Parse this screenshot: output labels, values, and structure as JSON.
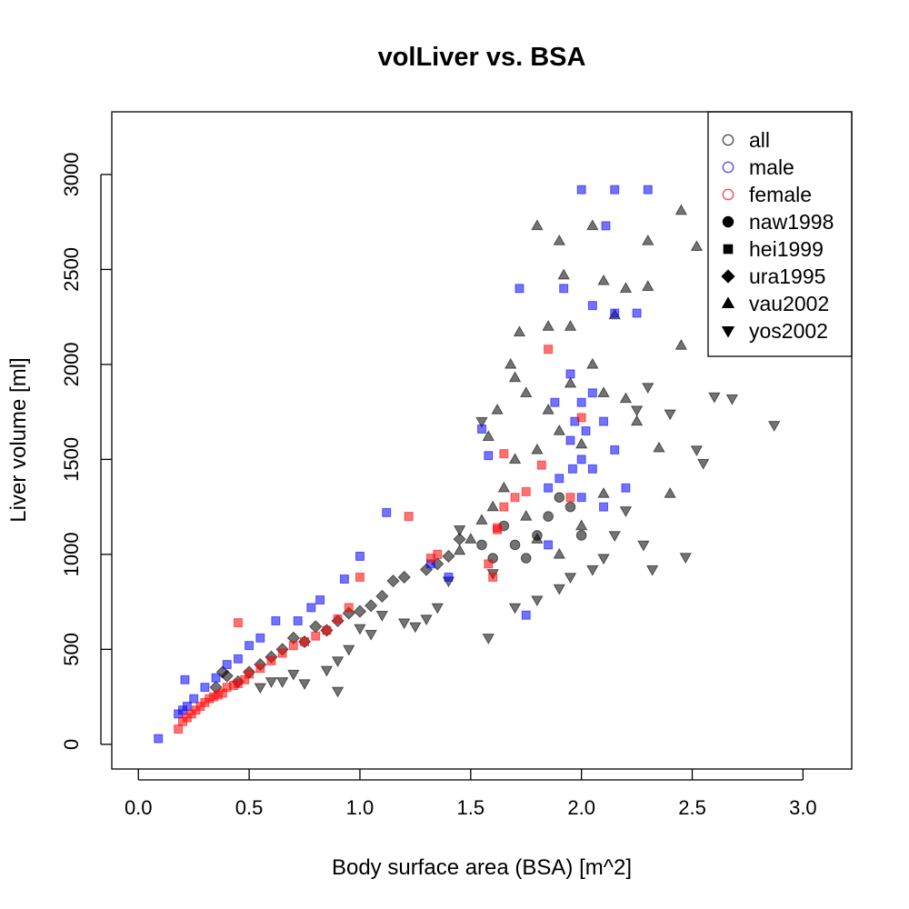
{
  "chart_data": {
    "type": "scatter",
    "title": "volLiver vs. BSA",
    "xlabel": "Body surface area (BSA) [m^2]",
    "ylabel": "Liver volume [ml]",
    "xlim": [
      -0.12,
      3.22
    ],
    "ylim": [
      -130,
      3330
    ],
    "xticks": [
      0.0,
      0.5,
      1.0,
      1.5,
      2.0,
      2.5,
      3.0
    ],
    "xtick_labels": [
      "0.0",
      "0.5",
      "1.0",
      "1.5",
      "2.0",
      "2.5",
      "3.0"
    ],
    "yticks": [
      0,
      500,
      1000,
      1500,
      2000,
      2500,
      3000
    ],
    "ytick_labels": [
      "0",
      "500",
      "1000",
      "1500",
      "2000",
      "2500",
      "3000"
    ],
    "grid": false,
    "legend_position": "top-right",
    "legend": [
      {
        "label": "all",
        "marker": "circle-open",
        "color": "#555555"
      },
      {
        "label": "male",
        "marker": "circle-open",
        "color": "#5555ee"
      },
      {
        "label": "female",
        "marker": "circle-open",
        "color": "#ee5555"
      },
      {
        "label": "naw1998",
        "marker": "circle",
        "color": "#000000"
      },
      {
        "label": "hei1999",
        "marker": "square",
        "color": "#000000"
      },
      {
        "label": "ura1995",
        "marker": "diamond",
        "color": "#000000"
      },
      {
        "label": "vau2002",
        "marker": "triangle-up",
        "color": "#000000"
      },
      {
        "label": "yos2002",
        "marker": "triangle-down",
        "color": "#000000"
      }
    ],
    "colors": {
      "all": "#000000",
      "male": "#0000ff",
      "female": "#ff0000"
    },
    "series": [
      {
        "group": "all",
        "marker": "triangle-down",
        "points": [
          [
            2.87,
            1680
          ],
          [
            2.68,
            1820
          ],
          [
            2.6,
            1830
          ],
          [
            2.55,
            1480
          ],
          [
            2.52,
            1550
          ],
          [
            2.47,
            985
          ],
          [
            2.4,
            1740
          ],
          [
            2.3,
            1880
          ],
          [
            2.25,
            1760
          ],
          [
            2.2,
            1230
          ],
          [
            2.15,
            1100
          ],
          [
            2.1,
            980
          ],
          [
            2.05,
            920
          ],
          [
            1.95,
            880
          ],
          [
            1.9,
            820
          ],
          [
            1.8,
            760
          ],
          [
            1.7,
            720
          ],
          [
            1.6,
            900
          ],
          [
            1.55,
            1700
          ],
          [
            1.45,
            1130
          ],
          [
            1.4,
            860
          ],
          [
            1.35,
            720
          ],
          [
            1.3,
            660
          ],
          [
            1.25,
            620
          ],
          [
            1.2,
            640
          ],
          [
            1.1,
            680
          ],
          [
            1.05,
            580
          ],
          [
            1.0,
            610
          ],
          [
            0.95,
            500
          ],
          [
            0.9,
            440
          ],
          [
            0.85,
            390
          ],
          [
            0.9,
            280
          ],
          [
            0.75,
            320
          ],
          [
            0.7,
            370
          ],
          [
            0.65,
            330
          ],
          [
            0.6,
            330
          ],
          [
            0.55,
            300
          ],
          [
            1.58,
            560
          ],
          [
            2.32,
            920
          ],
          [
            2.28,
            1050
          ]
        ]
      },
      {
        "group": "all",
        "marker": "triangle-up",
        "points": [
          [
            2.45,
            2810
          ],
          [
            2.52,
            2620
          ],
          [
            2.3,
            2650
          ],
          [
            2.3,
            2410
          ],
          [
            2.2,
            2400
          ],
          [
            2.15,
            2260
          ],
          [
            2.05,
            2730
          ],
          [
            2.1,
            2440
          ],
          [
            1.8,
            2730
          ],
          [
            1.9,
            2650
          ],
          [
            1.92,
            2470
          ],
          [
            1.95,
            2200
          ],
          [
            1.85,
            2200
          ],
          [
            1.72,
            2170
          ],
          [
            1.68,
            2000
          ],
          [
            1.7,
            1930
          ],
          [
            1.62,
            1760
          ],
          [
            1.58,
            1620
          ],
          [
            1.75,
            1850
          ],
          [
            1.85,
            1760
          ],
          [
            1.9,
            1650
          ],
          [
            2.0,
            1580
          ],
          [
            2.1,
            1850
          ],
          [
            2.2,
            1820
          ],
          [
            2.25,
            1700
          ],
          [
            2.35,
            1560
          ],
          [
            2.4,
            1320
          ],
          [
            1.65,
            1350
          ],
          [
            1.6,
            1250
          ],
          [
            1.55,
            1180
          ],
          [
            1.5,
            1080
          ],
          [
            1.45,
            1020
          ],
          [
            1.75,
            1200
          ],
          [
            1.8,
            1080
          ],
          [
            1.9,
            1000
          ],
          [
            2.0,
            1150
          ],
          [
            2.1,
            1320
          ],
          [
            1.7,
            1500
          ],
          [
            1.8,
            1550
          ],
          [
            2.45,
            2100
          ],
          [
            1.95,
            1900
          ],
          [
            2.05,
            2000
          ]
        ]
      },
      {
        "group": "all",
        "marker": "diamond",
        "points": [
          [
            1.45,
            1080
          ],
          [
            1.4,
            990
          ],
          [
            1.35,
            950
          ],
          [
            1.3,
            920
          ],
          [
            1.2,
            880
          ],
          [
            1.15,
            860
          ],
          [
            1.1,
            780
          ],
          [
            1.05,
            730
          ],
          [
            1.0,
            700
          ],
          [
            0.95,
            690
          ],
          [
            0.9,
            650
          ],
          [
            0.85,
            600
          ],
          [
            0.8,
            620
          ],
          [
            0.75,
            540
          ],
          [
            0.7,
            560
          ],
          [
            0.65,
            500
          ],
          [
            0.6,
            460
          ],
          [
            0.55,
            420
          ],
          [
            0.5,
            380
          ],
          [
            0.45,
            330
          ],
          [
            0.4,
            360
          ],
          [
            0.38,
            380
          ],
          [
            0.35,
            300
          ]
        ]
      },
      {
        "group": "all",
        "marker": "circle",
        "points": [
          [
            1.65,
            1150
          ],
          [
            1.7,
            1050
          ],
          [
            1.75,
            980
          ],
          [
            1.8,
            1100
          ],
          [
            1.85,
            1200
          ],
          [
            1.6,
            980
          ],
          [
            1.55,
            1050
          ],
          [
            1.9,
            1300
          ],
          [
            1.95,
            1250
          ],
          [
            2.0,
            1100
          ]
        ]
      },
      {
        "group": "male",
        "marker": "square",
        "points": [
          [
            2.15,
            2920
          ],
          [
            2.0,
            2920
          ],
          [
            2.3,
            2920
          ],
          [
            2.11,
            2730
          ],
          [
            2.05,
            2310
          ],
          [
            2.15,
            2270
          ],
          [
            2.25,
            2270
          ],
          [
            1.72,
            2400
          ],
          [
            1.92,
            2400
          ],
          [
            1.88,
            1800
          ],
          [
            1.95,
            1950
          ],
          [
            2.0,
            1800
          ],
          [
            2.05,
            1850
          ],
          [
            2.1,
            1700
          ],
          [
            1.95,
            1600
          ],
          [
            2.0,
            1500
          ],
          [
            2.05,
            1450
          ],
          [
            1.9,
            1400
          ],
          [
            1.85,
            1350
          ],
          [
            2.0,
            1300
          ],
          [
            2.1,
            1250
          ],
          [
            2.2,
            1350
          ],
          [
            1.55,
            1660
          ],
          [
            1.58,
            1520
          ],
          [
            1.12,
            1220
          ],
          [
            1.0,
            990
          ],
          [
            0.93,
            870
          ],
          [
            0.82,
            760
          ],
          [
            0.78,
            720
          ],
          [
            0.72,
            650
          ],
          [
            0.62,
            650
          ],
          [
            0.55,
            560
          ],
          [
            0.5,
            520
          ],
          [
            0.45,
            450
          ],
          [
            0.4,
            420
          ],
          [
            0.35,
            350
          ],
          [
            0.3,
            300
          ],
          [
            0.25,
            240
          ],
          [
            0.22,
            200
          ],
          [
            0.2,
            180
          ],
          [
            0.18,
            160
          ],
          [
            0.21,
            340
          ],
          [
            0.09,
            30
          ],
          [
            1.32,
            950
          ],
          [
            1.4,
            880
          ],
          [
            1.75,
            680
          ],
          [
            1.85,
            1050
          ],
          [
            2.15,
            1550
          ],
          [
            1.97,
            1700
          ],
          [
            2.02,
            1650
          ],
          [
            1.96,
            1450
          ]
        ]
      },
      {
        "group": "female",
        "marker": "square",
        "points": [
          [
            1.85,
            2080
          ],
          [
            1.65,
            1530
          ],
          [
            1.82,
            1470
          ],
          [
            1.75,
            1330
          ],
          [
            1.7,
            1300
          ],
          [
            1.65,
            1250
          ],
          [
            1.62,
            1130
          ],
          [
            1.58,
            950
          ],
          [
            1.6,
            880
          ],
          [
            1.35,
            1000
          ],
          [
            1.32,
            980
          ],
          [
            1.22,
            1200
          ],
          [
            1.0,
            880
          ],
          [
            0.95,
            720
          ],
          [
            0.9,
            660
          ],
          [
            0.85,
            600
          ],
          [
            0.8,
            570
          ],
          [
            0.75,
            540
          ],
          [
            0.7,
            520
          ],
          [
            0.65,
            480
          ],
          [
            0.6,
            440
          ],
          [
            0.55,
            400
          ],
          [
            0.5,
            370
          ],
          [
            0.48,
            340
          ],
          [
            0.45,
            320
          ],
          [
            0.43,
            310
          ],
          [
            0.4,
            300
          ],
          [
            0.38,
            270
          ],
          [
            0.36,
            260
          ],
          [
            0.34,
            250
          ],
          [
            0.32,
            240
          ],
          [
            0.3,
            220
          ],
          [
            0.28,
            200
          ],
          [
            0.26,
            180
          ],
          [
            0.24,
            160
          ],
          [
            0.22,
            140
          ],
          [
            0.2,
            120
          ],
          [
            0.18,
            80
          ],
          [
            0.45,
            640
          ],
          [
            1.62,
            1140
          ],
          [
            2.0,
            1720
          ],
          [
            1.95,
            1300
          ]
        ]
      }
    ]
  }
}
